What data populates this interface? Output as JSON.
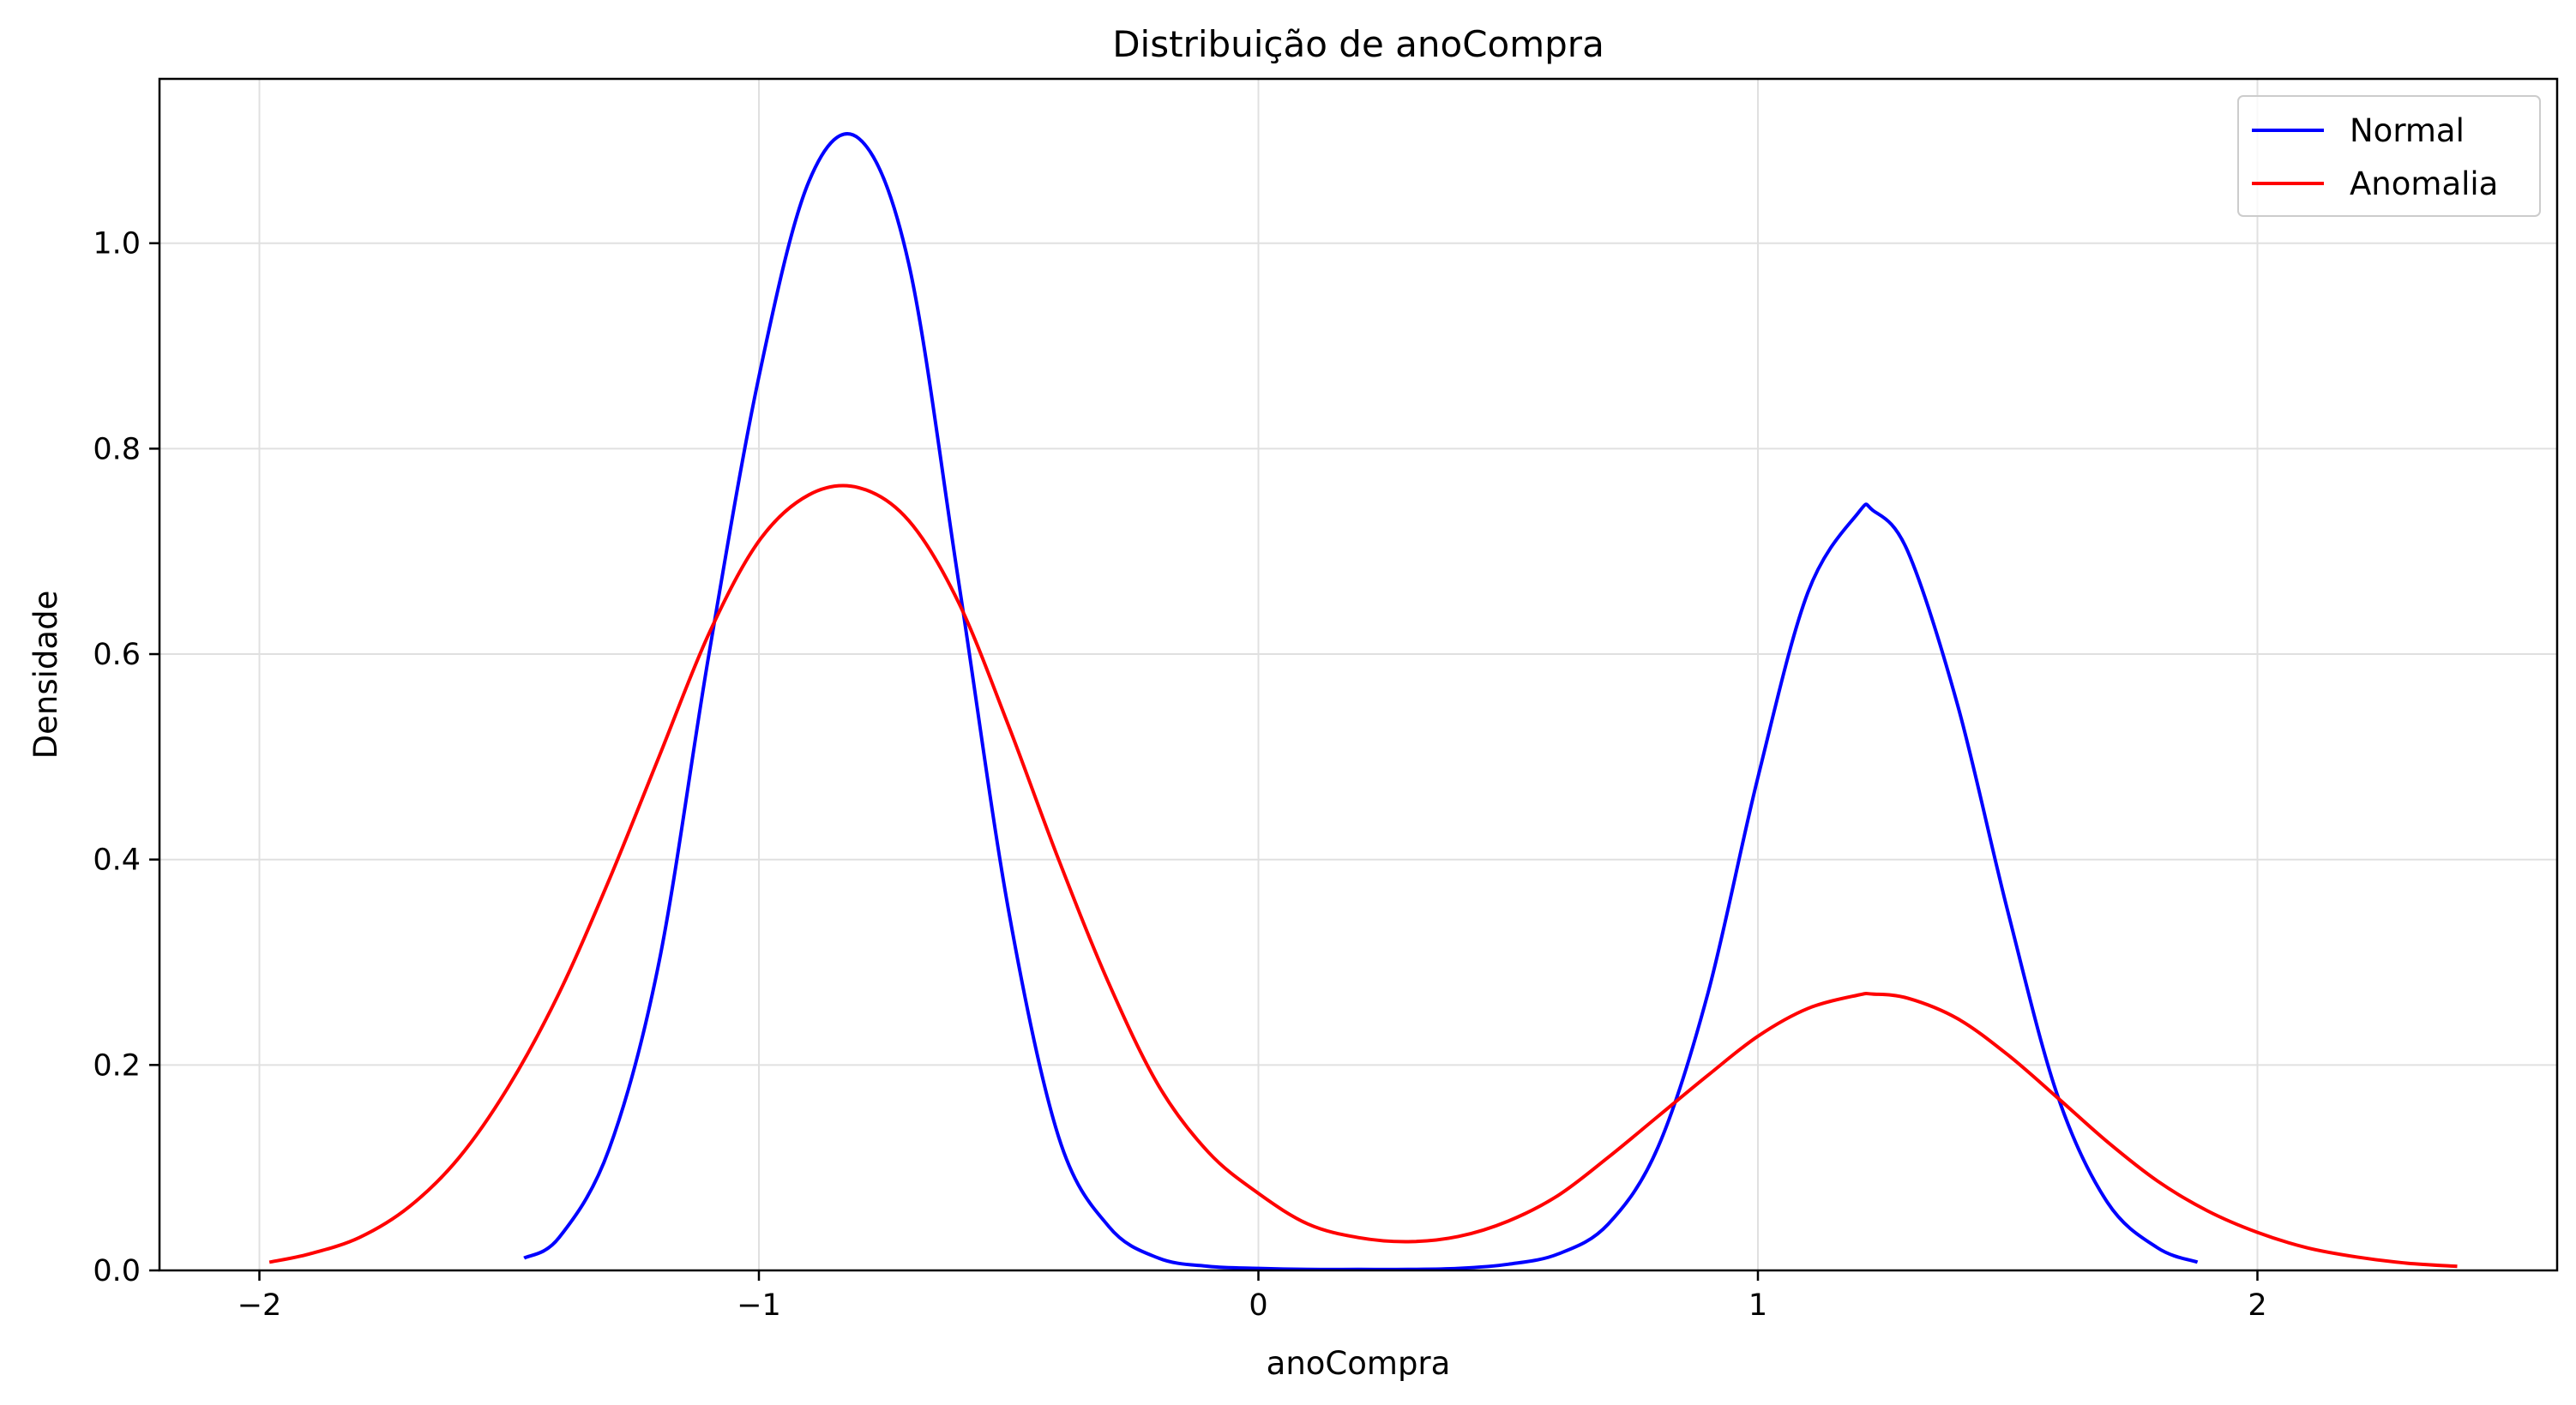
{
  "chart_data": {
    "type": "line",
    "title": "Distribuição de anoCompra",
    "xlabel": "anoCompra",
    "ylabel": "Densidade",
    "xlim": [
      -2.2,
      2.6
    ],
    "ylim": [
      0.0,
      1.16
    ],
    "x_ticks": [
      -2,
      -1,
      0,
      1,
      2
    ],
    "x_tick_labels": [
      "−2",
      "−1",
      "0",
      "1",
      "2"
    ],
    "y_ticks": [
      0.0,
      0.2,
      0.4,
      0.6,
      0.8,
      1.0
    ],
    "y_tick_labels": [
      "0.0",
      "0.2",
      "0.4",
      "0.6",
      "0.8",
      "1.0"
    ],
    "grid": true,
    "legend_position": "top-right",
    "series": [
      {
        "name": "Normal",
        "color": "#0000ff",
        "x": [
          -1.47,
          -1.4,
          -1.3,
          -1.2,
          -1.1,
          -1.0,
          -0.9,
          -0.8,
          -0.7,
          -0.6,
          -0.5,
          -0.4,
          -0.3,
          -0.2,
          -0.1,
          0.0,
          0.1,
          0.2,
          0.3,
          0.4,
          0.5,
          0.6,
          0.7,
          0.8,
          0.9,
          1.0,
          1.1,
          1.2,
          1.23,
          1.3,
          1.4,
          1.5,
          1.6,
          1.7,
          1.8,
          1.88
        ],
        "y": [
          0.012,
          0.032,
          0.118,
          0.3,
          0.6,
          0.87,
          1.06,
          1.102,
          0.98,
          0.67,
          0.35,
          0.13,
          0.043,
          0.012,
          0.004,
          0.002,
          0.001,
          0.001,
          0.001,
          0.002,
          0.006,
          0.016,
          0.045,
          0.12,
          0.27,
          0.48,
          0.66,
          0.737,
          0.74,
          0.7,
          0.55,
          0.35,
          0.17,
          0.066,
          0.022,
          0.008
        ]
      },
      {
        "name": "Anomalia",
        "color": "#ff0000",
        "x": [
          -1.98,
          -1.9,
          -1.8,
          -1.7,
          -1.6,
          -1.5,
          -1.4,
          -1.3,
          -1.2,
          -1.1,
          -1.0,
          -0.9,
          -0.8,
          -0.7,
          -0.6,
          -0.5,
          -0.4,
          -0.3,
          -0.2,
          -0.1,
          0.0,
          0.1,
          0.2,
          0.3,
          0.4,
          0.5,
          0.6,
          0.7,
          0.8,
          0.9,
          1.0,
          1.1,
          1.2,
          1.23,
          1.3,
          1.4,
          1.5,
          1.6,
          1.7,
          1.8,
          1.9,
          2.0,
          2.1,
          2.2,
          2.3,
          2.4
        ],
        "y": [
          0.008,
          0.016,
          0.032,
          0.062,
          0.11,
          0.18,
          0.27,
          0.38,
          0.5,
          0.62,
          0.71,
          0.755,
          0.762,
          0.73,
          0.65,
          0.53,
          0.4,
          0.28,
          0.18,
          0.115,
          0.075,
          0.045,
          0.032,
          0.028,
          0.033,
          0.048,
          0.073,
          0.11,
          0.15,
          0.19,
          0.228,
          0.255,
          0.268,
          0.269,
          0.265,
          0.245,
          0.21,
          0.168,
          0.125,
          0.087,
          0.058,
          0.037,
          0.022,
          0.013,
          0.007,
          0.004
        ]
      }
    ]
  }
}
